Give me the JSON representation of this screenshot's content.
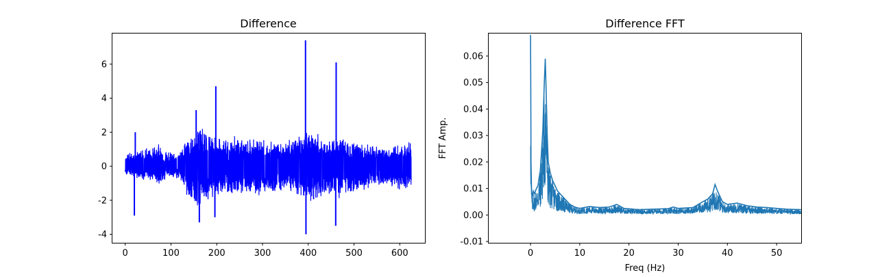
{
  "chart_data": [
    {
      "type": "line",
      "title": "Difference",
      "xlabel": "",
      "ylabel": "",
      "xlim": [
        -28,
        655
      ],
      "ylim": [
        -4.5,
        7.8
      ],
      "xticks": [
        0,
        100,
        200,
        300,
        400,
        500,
        600
      ],
      "yticks": [
        -4,
        -2,
        0,
        2,
        4,
        6
      ],
      "grid": false,
      "legend": "none",
      "color": "#0000ff",
      "series": [
        {
          "band_x": [
            0,
            10,
            20,
            30,
            40,
            50,
            60,
            70,
            80,
            90,
            100,
            110,
            120,
            130,
            140,
            150,
            160,
            170,
            180,
            190,
            200,
            210,
            220,
            230,
            240,
            250,
            260,
            270,
            280,
            290,
            300,
            310,
            320,
            330,
            340,
            350,
            360,
            370,
            380,
            390,
            400,
            410,
            420,
            430,
            440,
            450,
            460,
            470,
            480,
            490,
            500,
            510,
            520,
            530,
            540,
            550,
            560,
            570,
            580,
            590,
            600,
            610,
            625
          ],
          "band_hi": [
            0.8,
            0.9,
            1.0,
            1.1,
            1.3,
            1.2,
            1.4,
            1.5,
            1.3,
            1.2,
            1.1,
            0.9,
            1.0,
            1.8,
            2.0,
            2.5,
            3.2,
            2.8,
            2.4,
            2.2,
            2.0,
            1.9,
            1.8,
            2.0,
            2.1,
            2.2,
            1.7,
            1.8,
            2.0,
            1.9,
            1.8,
            1.7,
            1.7,
            1.8,
            1.6,
            1.7,
            1.9,
            2.0,
            2.1,
            2.3,
            2.5,
            2.4,
            2.2,
            2.1,
            2.0,
            1.9,
            1.8,
            2.2,
            2.0,
            1.8,
            2.1,
            1.8,
            1.7,
            1.6,
            1.5,
            1.4,
            1.3,
            1.2,
            1.3,
            1.4,
            1.5,
            1.6,
            1.7
          ],
          "band_lo": [
            -0.6,
            -0.7,
            -0.8,
            -0.9,
            -1.0,
            -0.9,
            -1.1,
            -1.2,
            -1.1,
            -1.0,
            -0.9,
            -0.8,
            -0.9,
            -1.8,
            -2.2,
            -2.7,
            -3.0,
            -2.6,
            -2.4,
            -2.2,
            -2.0,
            -1.9,
            -1.8,
            -2.0,
            -2.1,
            -2.0,
            -1.8,
            -1.9,
            -1.8,
            -2.0,
            -1.9,
            -1.8,
            -1.7,
            -1.8,
            -1.7,
            -1.8,
            -1.9,
            -2.0,
            -2.1,
            -2.4,
            -2.6,
            -2.5,
            -2.3,
            -2.1,
            -2.0,
            -2.0,
            -1.9,
            -2.3,
            -2.1,
            -1.9,
            -2.0,
            -1.8,
            -1.6,
            -1.5,
            -1.5,
            -1.4,
            -1.4,
            -1.3,
            -1.4,
            -1.5,
            -1.6,
            -1.6,
            -1.7
          ],
          "spikes": [
            {
              "x": 20,
              "y": -2.9
            },
            {
              "x": 22,
              "y": 2.0
            },
            {
              "x": 155,
              "y": 3.3
            },
            {
              "x": 162,
              "y": -3.3
            },
            {
              "x": 198,
              "y": 4.7
            },
            {
              "x": 196,
              "y": -3.0
            },
            {
              "x": 394,
              "y": 7.4
            },
            {
              "x": 395,
              "y": -4.0
            },
            {
              "x": 461,
              "y": 6.1
            },
            {
              "x": 460,
              "y": -3.5
            }
          ]
        }
      ]
    },
    {
      "type": "line",
      "title": "Difference FFT",
      "xlabel": "Freq (Hz)",
      "ylabel": "FFT Amp.",
      "xlim": [
        -8.5,
        55
      ],
      "ylim": [
        -0.0105,
        0.0685
      ],
      "xticks": [
        0,
        10,
        20,
        30,
        40,
        50
      ],
      "yticks": [
        -0.01,
        0.0,
        0.01,
        0.02,
        0.03,
        0.04,
        0.05,
        0.06
      ],
      "ytick_labels": [
        "-0.01",
        "0.00",
        "0.01",
        "0.02",
        "0.03",
        "0.04",
        "0.05",
        "0.06"
      ],
      "grid": false,
      "legend": "none",
      "color": "#1f77b4",
      "series": [
        {
          "x": [
            0.0,
            0.05,
            0.1,
            0.2,
            0.3,
            0.4,
            0.6,
            0.8,
            1.0,
            1.2,
            1.5,
            2.0,
            2.5,
            2.8,
            3.0,
            3.2,
            3.4,
            3.6,
            4.0,
            4.5,
            5.0,
            5.5,
            6.0,
            6.5,
            7.0,
            8.0,
            9.0,
            10.0,
            12.0,
            14.0,
            16.0,
            17.5,
            19.0,
            22.0,
            25.0,
            28.0,
            29.0,
            30.0,
            33.0,
            35.0,
            36.0,
            37.0,
            37.5,
            38.0,
            38.5,
            39.0,
            40.0,
            42.0,
            44.0,
            46.0,
            48.0,
            50.0,
            52.0,
            55.0
          ],
          "y": [
            0.068,
            0.05,
            0.02,
            0.01,
            0.008,
            0.007,
            0.009,
            0.008,
            0.009,
            0.01,
            0.011,
            0.017,
            0.032,
            0.05,
            0.059,
            0.045,
            0.03,
            0.02,
            0.016,
            0.013,
            0.011,
            0.009,
            0.008,
            0.007,
            0.006,
            0.004,
            0.003,
            0.0025,
            0.0032,
            0.0028,
            0.003,
            0.004,
            0.0025,
            0.002,
            0.0022,
            0.0024,
            0.003,
            0.0025,
            0.0028,
            0.005,
            0.006,
            0.008,
            0.0115,
            0.009,
            0.007,
            0.005,
            0.004,
            0.0045,
            0.0035,
            0.003,
            0.0028,
            0.0025,
            0.0022,
            0.002
          ]
        }
      ]
    }
  ]
}
